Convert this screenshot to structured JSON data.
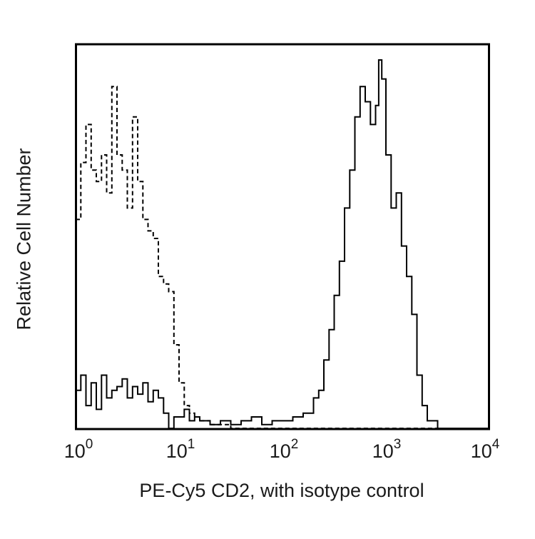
{
  "chart_data": {
    "type": "line",
    "subtype": "flow-cytometry-histogram",
    "title": "",
    "xlabel": "PE-Cy5 CD2, with isotype control",
    "ylabel": "Relative Cell Number",
    "xscale": "log",
    "xlim": [
      1,
      10000
    ],
    "ylim": [
      0,
      100
    ],
    "x_ticks": [
      {
        "base": "10",
        "exp": "0"
      },
      {
        "base": "10",
        "exp": "1"
      },
      {
        "base": "10",
        "exp": "2"
      },
      {
        "base": "10",
        "exp": "3"
      },
      {
        "base": "10",
        "exp": "4"
      }
    ],
    "grid": false,
    "legend": null,
    "log10_x": [
      0.0,
      0.05,
      0.1,
      0.15,
      0.2,
      0.25,
      0.3,
      0.35,
      0.4,
      0.45,
      0.5,
      0.55,
      0.6,
      0.65,
      0.7,
      0.75,
      0.8,
      0.85,
      0.9,
      0.95,
      1.0,
      1.05,
      1.1,
      1.15,
      1.2,
      1.3,
      1.4,
      1.5,
      1.6,
      1.7,
      1.8,
      1.9,
      2.0,
      2.1,
      2.2,
      2.3,
      2.35,
      2.4,
      2.45,
      2.5,
      2.55,
      2.6,
      2.65,
      2.7,
      2.75,
      2.8,
      2.85,
      2.9,
      2.93,
      2.96,
      3.0,
      3.05,
      3.1,
      3.15,
      3.2,
      3.25,
      3.3,
      3.35,
      3.4,
      3.5,
      3.6,
      3.8,
      4.0
    ],
    "series": [
      {
        "name": "Isotype control",
        "style": "dashed",
        "color": "#000000",
        "values": [
          55,
          70,
          80,
          68,
          65,
          72,
          62,
          90,
          72,
          68,
          58,
          82,
          65,
          55,
          52,
          50,
          40,
          38,
          36,
          22,
          12,
          6,
          4,
          3,
          2,
          1,
          1,
          0,
          0,
          0,
          0,
          0,
          0,
          0,
          0,
          0,
          0,
          0,
          0,
          0,
          0,
          0,
          0,
          0,
          0,
          0,
          0,
          0,
          0,
          0,
          0,
          0,
          0,
          0,
          0,
          0,
          0,
          0,
          0,
          0,
          0,
          0,
          0
        ]
      },
      {
        "name": "PE-Cy5 CD2",
        "style": "solid",
        "color": "#000000",
        "values": [
          10,
          14,
          6,
          12,
          5,
          14,
          8,
          10,
          11,
          13,
          8,
          11,
          9,
          12,
          7,
          10,
          8,
          4,
          0,
          3,
          3,
          5,
          2,
          3,
          2,
          1,
          2,
          1,
          2,
          3,
          1,
          2,
          2,
          3,
          4,
          8,
          10,
          18,
          26,
          35,
          44,
          58,
          68,
          82,
          90,
          86,
          80,
          85,
          97,
          92,
          72,
          58,
          62,
          48,
          40,
          30,
          14,
          6,
          2,
          0,
          0,
          0,
          0
        ]
      }
    ]
  }
}
